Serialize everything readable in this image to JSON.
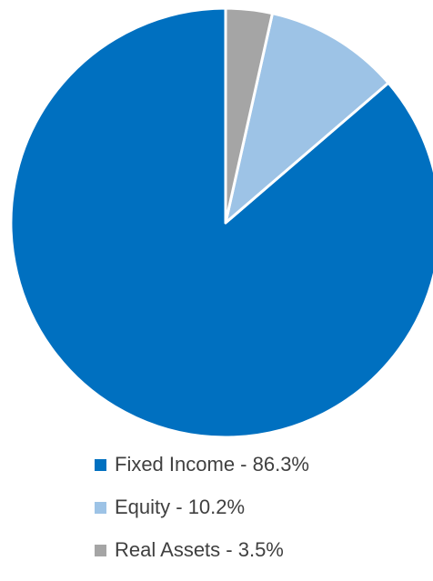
{
  "chart_data": {
    "type": "pie",
    "title": "",
    "series": [
      {
        "name": "",
        "slices": [
          {
            "label": "Fixed Income - 86.3%",
            "category": "Fixed Income",
            "value": 86.3,
            "color": "#0070C0"
          },
          {
            "label": "Equity - 10.2%",
            "category": "Equity",
            "value": 10.2,
            "color": "#9DC3E6"
          },
          {
            "label": "Real Assets - 3.5%",
            "category": "Real Assets",
            "value": 3.5,
            "color": "#A5A5A5"
          }
        ]
      }
    ],
    "legend_position": "bottom",
    "start_angle": "12 o'clock",
    "direction": "counterclockwise"
  }
}
